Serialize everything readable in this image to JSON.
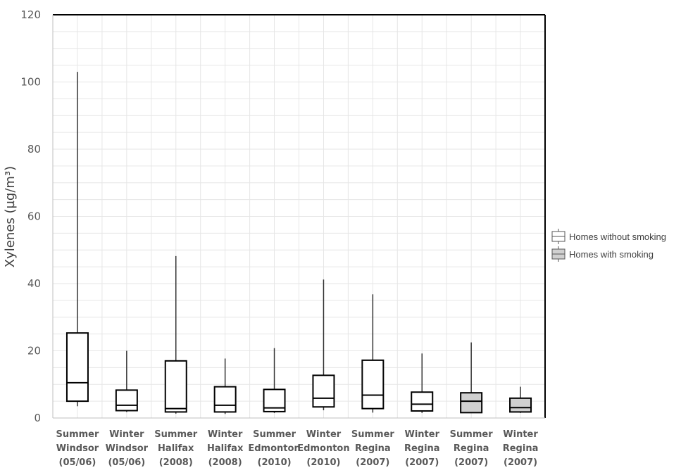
{
  "chart_data": {
    "type": "box",
    "ylabel": "Xylenes (µg/m³)",
    "ylim": [
      0,
      120
    ],
    "yticks": [
      0,
      20,
      40,
      60,
      80,
      100,
      120
    ],
    "grid": true,
    "legend": {
      "placement": "right",
      "entries": [
        {
          "label": "Homes without smoking",
          "fill": "#ffffff"
        },
        {
          "label": "Homes with smoking",
          "fill": "#d0d0d0"
        }
      ]
    },
    "categories": [
      {
        "lines": [
          "Summer",
          "Windsor",
          "(05/06)"
        ],
        "group": "Homes without smoking",
        "min": 3.5,
        "q1": 5,
        "median": 10.5,
        "q3": 25.3,
        "max": 103
      },
      {
        "lines": [
          "Winter",
          "Windsor",
          "(05/06)"
        ],
        "group": "Homes without smoking",
        "min": 1.8,
        "q1": 2.2,
        "median": 3.8,
        "q3": 8.3,
        "max": 20
      },
      {
        "lines": [
          "Summer",
          "Halifax",
          "(2008)"
        ],
        "group": "Homes without smoking",
        "min": 1.3,
        "q1": 1.8,
        "median": 2.8,
        "q3": 17,
        "max": 48.2
      },
      {
        "lines": [
          "Winter",
          "Halifax",
          "(2008)"
        ],
        "group": "Homes without smoking",
        "min": 1.2,
        "q1": 1.8,
        "median": 3.8,
        "q3": 9.3,
        "max": 17.7
      },
      {
        "lines": [
          "Summer",
          "Edmonton",
          "(2010)"
        ],
        "group": "Homes without smoking",
        "min": 1.5,
        "q1": 1.9,
        "median": 3,
        "q3": 8.5,
        "max": 20.8
      },
      {
        "lines": [
          "Winter",
          "Edmonton",
          "(2010)"
        ],
        "group": "Homes without smoking",
        "min": 2.3,
        "q1": 3.3,
        "median": 5.9,
        "q3": 12.7,
        "max": 41.2
      },
      {
        "lines": [
          "Summer",
          "Regina",
          "(2007)"
        ],
        "group": "Homes without smoking",
        "min": 1.6,
        "q1": 2.8,
        "median": 6.8,
        "q3": 17.2,
        "max": 36.8
      },
      {
        "lines": [
          "Winter",
          "Regina",
          "(2007)"
        ],
        "group": "Homes without smoking",
        "min": 1.5,
        "q1": 2.1,
        "median": 4.1,
        "q3": 7.7,
        "max": 19.2
      },
      {
        "lines": [
          "Summer",
          "Regina",
          "(2007)"
        ],
        "group": "Homes with smoking",
        "min": 1.5,
        "q1": 1.6,
        "median": 5,
        "q3": 7.5,
        "max": 22.5
      },
      {
        "lines": [
          "Winter",
          "Regina",
          "(2007)"
        ],
        "group": "Homes with smoking",
        "min": 1.5,
        "q1": 1.8,
        "median": 3.1,
        "q3": 5.9,
        "max": 9.3
      }
    ]
  }
}
